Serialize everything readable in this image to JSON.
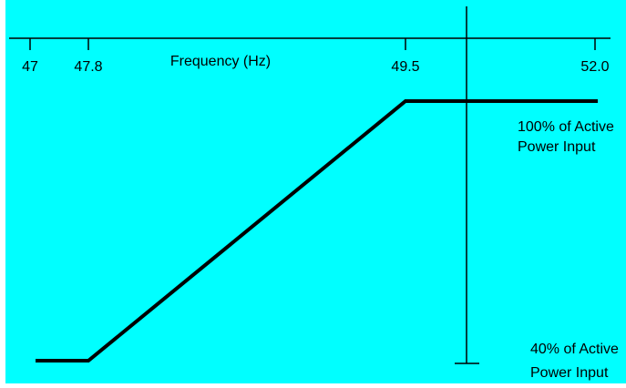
{
  "chart_data": {
    "type": "line",
    "title": "",
    "xlabel": "Frequency (Hz)",
    "ylabel": "",
    "x_ticks": [
      "47",
      "47.8",
      "49.5",
      "52.0"
    ],
    "series": [
      {
        "points": [
          {
            "x": 47.0,
            "y": 40
          },
          {
            "x": 47.8,
            "y": 40
          },
          {
            "x": 49.5,
            "y": 100
          },
          {
            "x": 52.0,
            "y": 100
          }
        ]
      }
    ],
    "annotations": {
      "upper_line1": "100% of Active",
      "upper_line2": "Power Input",
      "lower_line1": "40% of Active",
      "lower_line2": "Power Input"
    },
    "colors": {
      "background": "#00ffff",
      "line": "#000000",
      "axis": "#000000"
    }
  }
}
